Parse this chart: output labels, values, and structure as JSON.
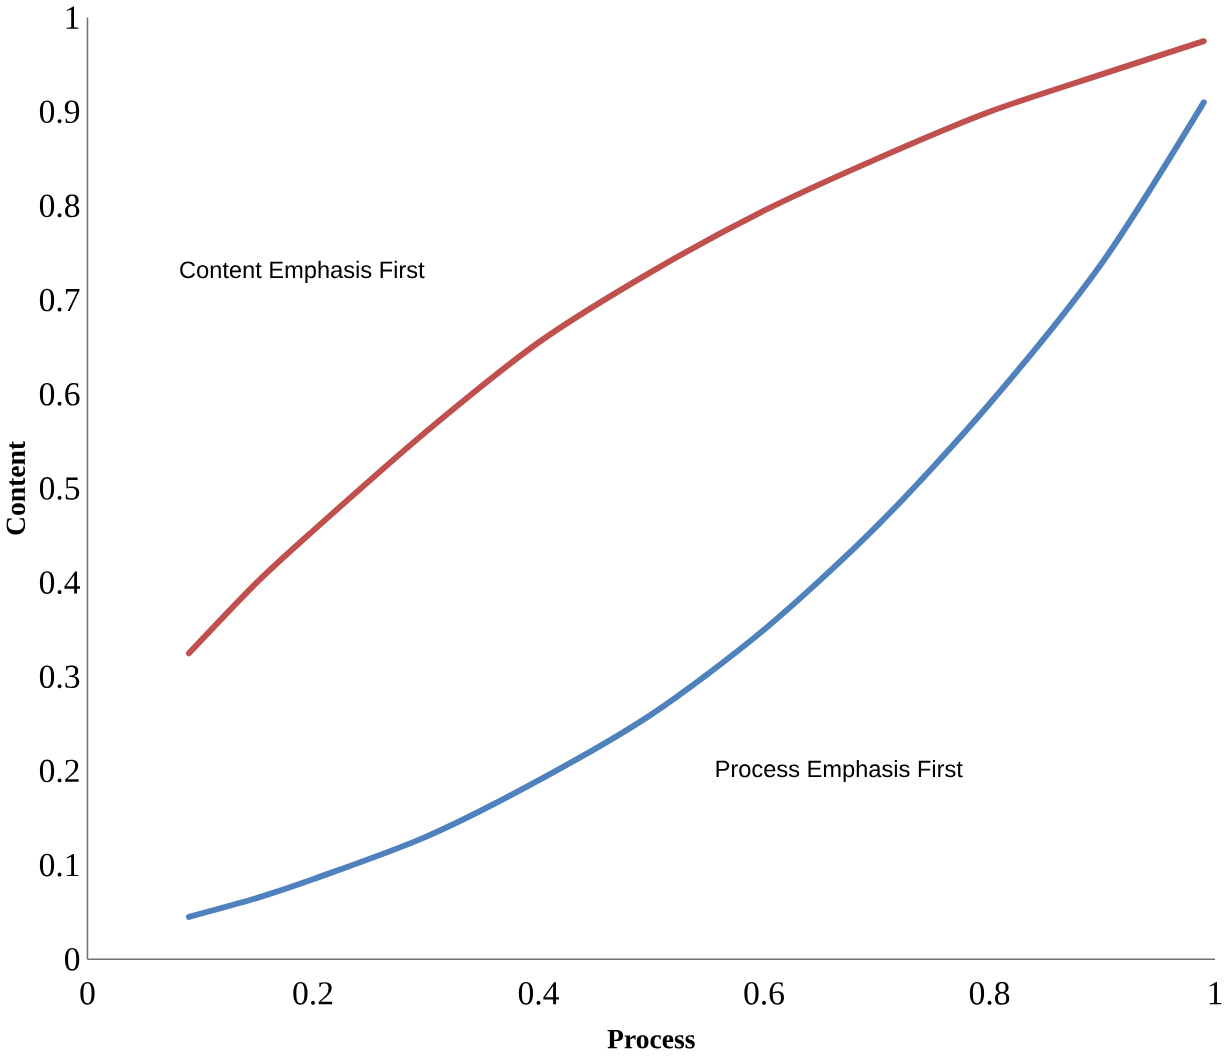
{
  "chart_data": {
    "type": "line",
    "xlabel": "Process",
    "ylabel": "Content",
    "xlim": [
      0,
      1
    ],
    "ylim": [
      0,
      1
    ],
    "xticks": [
      0,
      0.2,
      0.4,
      0.6,
      0.8,
      1
    ],
    "yticks": [
      0,
      0.1,
      0.2,
      0.3,
      0.4,
      0.5,
      0.6,
      0.7,
      0.8,
      0.9,
      1
    ],
    "series": [
      {
        "color": "#c0504d",
        "x": [
          0.09,
          0.15,
          0.2,
          0.3,
          0.4,
          0.5,
          0.6,
          0.7,
          0.8,
          0.9,
          0.99
        ],
        "values": [
          0.325,
          0.4,
          0.455,
          0.56,
          0.655,
          0.73,
          0.795,
          0.85,
          0.9,
          0.94,
          0.975
        ]
      },
      {
        "color": "#4f81bd",
        "x": [
          0.09,
          0.15,
          0.2,
          0.3,
          0.4,
          0.5,
          0.6,
          0.7,
          0.8,
          0.9,
          0.99
        ],
        "values": [
          0.045,
          0.065,
          0.085,
          0.13,
          0.19,
          0.26,
          0.35,
          0.46,
          0.59,
          0.74,
          0.91
        ]
      }
    ],
    "annotations": [
      "Content Emphasis First",
      "Process Emphasis First"
    ],
    "grid": false,
    "marker": "none",
    "line_style": "solid"
  }
}
